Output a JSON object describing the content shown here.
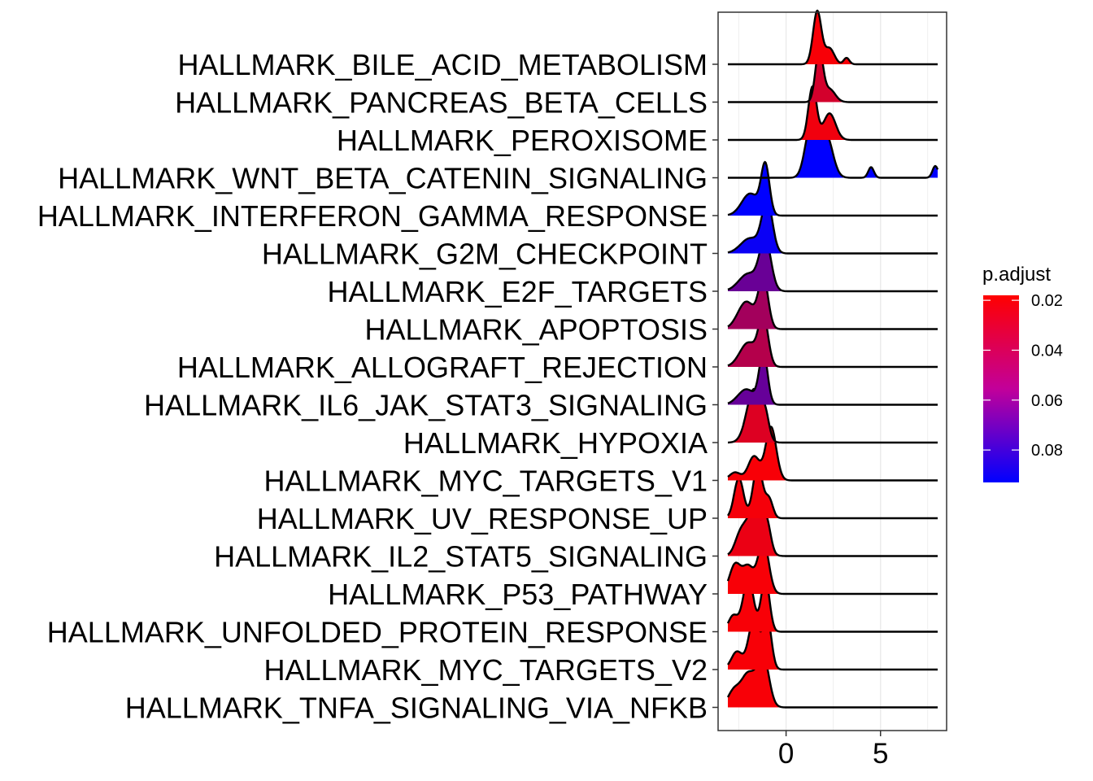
{
  "chart_data": {
    "type": "ridgeline",
    "xlabel": "",
    "ylabel": "",
    "xlim": [
      -3.6,
      8.5
    ],
    "x_ticks": [
      0,
      5
    ],
    "grid": true,
    "legend": {
      "title": "p.adjust",
      "position": "right",
      "ticks": [
        0.02,
        0.04,
        0.06,
        0.08
      ],
      "range": [
        0.018,
        0.093
      ],
      "color_low": "#ff0000",
      "color_high": "#0000ff"
    },
    "series": [
      {
        "name": "HALLMARK_BILE_ACID_METABOLISM",
        "p_adjust": 0.02,
        "peaks": [
          [
            1.65,
            0.22,
            1.0
          ],
          [
            2.3,
            0.25,
            0.3
          ],
          [
            3.2,
            0.15,
            0.12
          ]
        ]
      },
      {
        "name": "HALLMARK_PANCREAS_BETA_CELLS",
        "p_adjust": 0.031,
        "peaks": [
          [
            1.75,
            0.2,
            1.0
          ],
          [
            2.3,
            0.3,
            0.25
          ]
        ]
      },
      {
        "name": "HALLMARK_PEROXISOME",
        "p_adjust": 0.022,
        "peaks": [
          [
            1.4,
            0.22,
            1.0
          ],
          [
            2.3,
            0.32,
            0.5
          ]
        ]
      },
      {
        "name": "HALLMARK_WNT_BETA_CATENIN_SIGNALING",
        "p_adjust": 0.093,
        "peaks": [
          [
            1.3,
            0.3,
            0.85
          ],
          [
            2.1,
            0.35,
            0.75
          ],
          [
            4.5,
            0.15,
            0.18
          ],
          [
            7.9,
            0.15,
            0.2
          ]
        ]
      },
      {
        "name": "HALLMARK_INTERFERON_GAMMA_RESPONSE",
        "p_adjust": 0.093,
        "peaks": [
          [
            -1.1,
            0.22,
            1.0
          ],
          [
            -1.9,
            0.45,
            0.45
          ]
        ]
      },
      {
        "name": "HALLMARK_G2M_CHECKPOINT",
        "p_adjust": 0.09,
        "peaks": [
          [
            -1.0,
            0.28,
            1.0
          ],
          [
            -1.9,
            0.5,
            0.3
          ]
        ]
      },
      {
        "name": "HALLMARK_E2F_TARGETS",
        "p_adjust": 0.062,
        "peaks": [
          [
            -1.1,
            0.3,
            1.0
          ],
          [
            -2.0,
            0.5,
            0.35
          ]
        ]
      },
      {
        "name": "HALLMARK_APOPTOSIS",
        "p_adjust": 0.045,
        "peaks": [
          [
            -1.2,
            0.25,
            1.0
          ],
          [
            -2.1,
            0.45,
            0.55
          ]
        ]
      },
      {
        "name": "HALLMARK_ALLOGRAFT_REJECTION",
        "p_adjust": 0.04,
        "peaks": [
          [
            -1.2,
            0.25,
            1.0
          ],
          [
            -2.0,
            0.45,
            0.5
          ]
        ]
      },
      {
        "name": "HALLMARK_IL6_JAK_STAT3_SIGNALING",
        "p_adjust": 0.063,
        "peaks": [
          [
            -1.2,
            0.22,
            1.0
          ],
          [
            -2.1,
            0.45,
            0.3
          ]
        ]
      },
      {
        "name": "HALLMARK_HYPOXIA",
        "p_adjust": 0.028,
        "peaks": [
          [
            -1.7,
            0.38,
            1.0
          ],
          [
            -1.1,
            0.2,
            0.4
          ]
        ]
      },
      {
        "name": "HALLMARK_MYC_TARGETS_V1",
        "p_adjust": 0.02,
        "peaks": [
          [
            -0.8,
            0.28,
            1.0
          ],
          [
            -1.7,
            0.3,
            0.45
          ],
          [
            -2.7,
            0.3,
            0.15
          ]
        ]
      },
      {
        "name": "HALLMARK_UV_RESPONSE_UP",
        "p_adjust": 0.021,
        "peaks": [
          [
            -1.5,
            0.25,
            1.0
          ],
          [
            -2.5,
            0.25,
            0.75
          ],
          [
            -0.9,
            0.2,
            0.35
          ]
        ]
      },
      {
        "name": "HALLMARK_IL2_STAT5_SIGNALING",
        "p_adjust": 0.024,
        "peaks": [
          [
            -1.6,
            0.4,
            1.0
          ],
          [
            -2.4,
            0.3,
            0.4
          ],
          [
            -1.0,
            0.2,
            0.4
          ]
        ]
      },
      {
        "name": "HALLMARK_P53_PATHWAY",
        "p_adjust": 0.02,
        "peaks": [
          [
            -1.2,
            0.28,
            1.0
          ],
          [
            -2.7,
            0.3,
            0.55
          ],
          [
            -2.0,
            0.3,
            0.5
          ]
        ]
      },
      {
        "name": "HALLMARK_UNFOLDED_PROTEIN_RESPONSE",
        "p_adjust": 0.02,
        "peaks": [
          [
            -2.0,
            0.28,
            1.0
          ],
          [
            -1.1,
            0.22,
            1.0
          ],
          [
            -2.8,
            0.25,
            0.3
          ]
        ]
      },
      {
        "name": "HALLMARK_MYC_TARGETS_V2",
        "p_adjust": 0.02,
        "peaks": [
          [
            -1.7,
            0.28,
            1.0
          ],
          [
            -1.0,
            0.22,
            1.0
          ],
          [
            -2.6,
            0.3,
            0.35
          ]
        ]
      },
      {
        "name": "HALLMARK_TNFA_SIGNALING_VIA_NFKB",
        "p_adjust": 0.02,
        "peaks": [
          [
            -1.2,
            0.3,
            1.0
          ],
          [
            -2.0,
            0.4,
            0.7
          ],
          [
            -2.8,
            0.3,
            0.3
          ]
        ]
      }
    ]
  }
}
